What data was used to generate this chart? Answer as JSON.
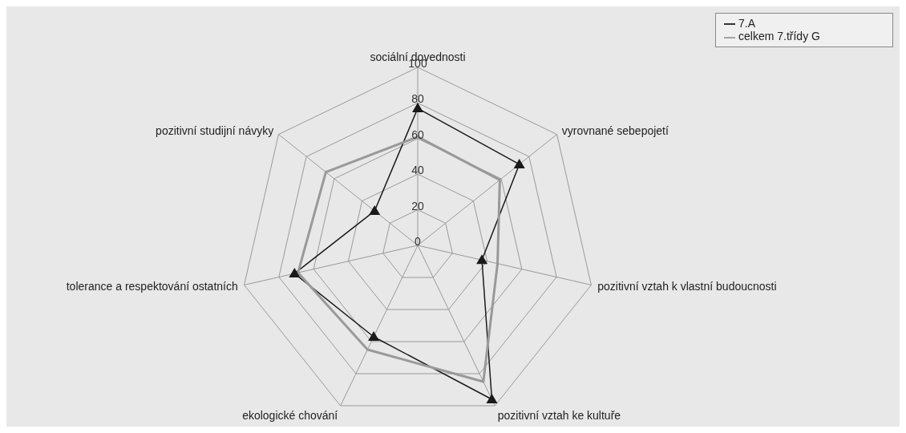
{
  "chart_data": {
    "type": "radar",
    "categories": [
      "sociální dovednosti",
      "vyrovnané sebepojetí",
      "pozitivní vztah k vlastní budoucnosti",
      "pozitivní vztah ke kultuře",
      "ekologické chování",
      "tolerance a respektování ostatních",
      "pozitivní studijní návyky"
    ],
    "series": [
      {
        "name": "7.A",
        "color": "#1a1a1a",
        "marker": "triangle",
        "values": [
          77,
          73,
          37,
          96,
          57,
          71,
          31
        ]
      },
      {
        "name": "celkem 7.třídy G",
        "color": "#999999",
        "marker": "none",
        "values": [
          61,
          59,
          46,
          85,
          65,
          69,
          66
        ]
      }
    ],
    "ylim": [
      0,
      100
    ],
    "yticks": [
      0,
      20,
      40,
      60,
      80,
      100
    ],
    "grid": true,
    "legend": "top right"
  }
}
